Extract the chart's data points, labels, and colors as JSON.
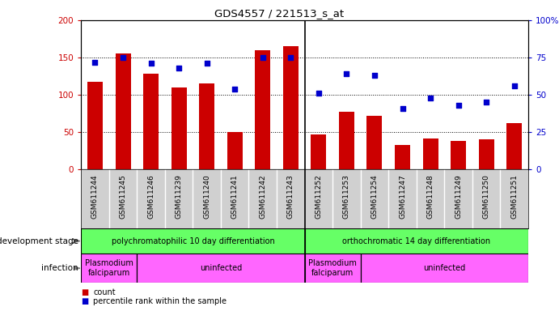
{
  "title": "GDS4557 / 221513_s_at",
  "categories": [
    "GSM611244",
    "GSM611245",
    "GSM611246",
    "GSM611239",
    "GSM611240",
    "GSM611241",
    "GSM611242",
    "GSM611243",
    "GSM611252",
    "GSM611253",
    "GSM611254",
    "GSM611247",
    "GSM611248",
    "GSM611249",
    "GSM611250",
    "GSM611251"
  ],
  "counts": [
    118,
    155,
    128,
    110,
    115,
    50,
    160,
    165,
    47,
    77,
    72,
    33,
    42,
    38,
    40,
    62
  ],
  "percentiles": [
    72,
    75,
    71,
    68,
    71,
    54,
    75,
    75,
    51,
    64,
    63,
    41,
    48,
    43,
    45,
    56
  ],
  "ylim_left": [
    0,
    200
  ],
  "ylim_right": [
    0,
    100
  ],
  "yticks_left": [
    0,
    50,
    100,
    150,
    200
  ],
  "yticks_right": [
    0,
    25,
    50,
    75,
    100
  ],
  "yticklabels_right": [
    "0",
    "25",
    "50",
    "75",
    "100%"
  ],
  "bar_color": "#cc0000",
  "dot_color": "#0000cc",
  "xtick_bg_color": "#d0d0d0",
  "xtick_sep_color": "#ffffff",
  "dev_stage_color1": "#66ff66",
  "dev_stage_color2": "#44ee44",
  "infection_color": "#ff66ff",
  "dev_stage_groups": [
    {
      "text": "polychromatophilic 10 day differentiation",
      "start": 0,
      "end": 8
    },
    {
      "text": "orthochromatic 14 day differentiation",
      "start": 8,
      "end": 16
    }
  ],
  "infection_groups": [
    {
      "text": "Plasmodium\nfalciparum",
      "start": 0,
      "end": 2
    },
    {
      "text": "uninfected",
      "start": 2,
      "end": 8
    },
    {
      "text": "Plasmodium\nfalciparum",
      "start": 8,
      "end": 10
    },
    {
      "text": "uninfected",
      "start": 10,
      "end": 16
    }
  ],
  "dev_label": "development stage",
  "inf_label": "infection",
  "legend_count_label": "count",
  "legend_pct_label": "percentile rank within the sample",
  "group_separator": 8,
  "n_samples": 16
}
